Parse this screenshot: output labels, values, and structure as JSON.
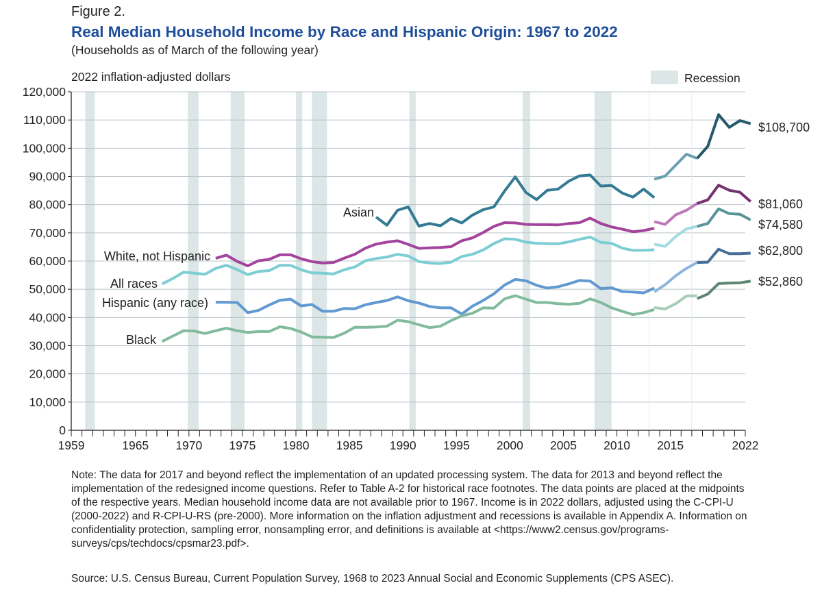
{
  "header": {
    "figure_label": "Figure 2.",
    "title": "Real Median Household Income by Race and Hispanic Origin: 1967 to 2022",
    "subtitle": "(Households as of March of the following year)",
    "y_unit": "2022 inflation-adjusted dollars",
    "legend_recession": "Recession"
  },
  "chart_data": {
    "type": "line",
    "title": "Real Median Household Income by Race and Hispanic Origin: 1967 to 2022",
    "ylabel": "2022 inflation-adjusted dollars",
    "xlabel": "",
    "xlim": [
      1959,
      2022
    ],
    "ylim": [
      0,
      120000
    ],
    "y_ticks": [
      0,
      10000,
      20000,
      30000,
      40000,
      50000,
      60000,
      70000,
      80000,
      90000,
      100000,
      110000,
      120000
    ],
    "y_tick_labels": [
      "0",
      "10,000",
      "20,000",
      "30,000",
      "40,000",
      "50,000",
      "60,000",
      "70,000",
      "80,000",
      "90,000",
      "100,000",
      "110,000",
      "120,000"
    ],
    "x_tick_labels": [
      {
        "year": 1959,
        "label": "1959"
      },
      {
        "year": 1965,
        "label": "1965"
      },
      {
        "year": 1970,
        "label": "1970"
      },
      {
        "year": 1975,
        "label": "1975"
      },
      {
        "year": 1980,
        "label": "1980"
      },
      {
        "year": 1985,
        "label": "1985"
      },
      {
        "year": 1990,
        "label": "1990"
      },
      {
        "year": 1995,
        "label": "1995"
      },
      {
        "year": 2000,
        "label": "2000"
      },
      {
        "year": 2005,
        "label": "2005"
      },
      {
        "year": 2010,
        "label": "2010"
      },
      {
        "year": 2015,
        "label": "2015"
      },
      {
        "year": 2022,
        "label": "2022"
      }
    ],
    "recessions": [
      [
        1960.3,
        1961.2
      ],
      [
        1969.9,
        1970.9
      ],
      [
        1973.9,
        1975.2
      ],
      [
        1980.0,
        1980.6
      ],
      [
        1981.5,
        1982.9
      ],
      [
        1990.6,
        1991.2
      ],
      [
        2001.2,
        2001.9
      ],
      [
        2007.9,
        2009.5
      ]
    ],
    "break_years": [
      2013,
      2017
    ],
    "series": [
      {
        "name": "Asian",
        "color": "#337a92",
        "label": "Asian",
        "end_label": "$108,700",
        "segments": [
          {
            "start": 1987,
            "values": [
              75600,
              72700,
              78000,
              79200,
              72400,
              73300,
              72500,
              75100,
              73500,
              76300,
              78200,
              79200,
              84800,
              89800,
              84300,
              81800,
              85100,
              85500,
              88300,
              90200,
              90500,
              86600,
              86800,
              84100,
              82700,
              85500,
              82500
            ]
          },
          {
            "start": 2013,
            "values": [
              89000,
              90100,
              94000,
              97900,
              96400
            ]
          },
          {
            "start": 2017,
            "values": [
              96400,
              100700,
              111900,
              107400,
              109800,
              108700
            ]
          }
        ]
      },
      {
        "name": "White, not Hispanic",
        "color": "#a3449c",
        "label": "White, not Hispanic",
        "end_label": "$81,060",
        "segments": [
          {
            "start": 1972,
            "values": [
              61000,
              62100,
              59900,
              58300,
              60100,
              60600,
              62200,
              62200,
              60800,
              59800,
              59300,
              59500,
              61000,
              62400,
              64600,
              66000,
              66700,
              67200,
              65900,
              64500,
              64700,
              64800,
              65100,
              67200,
              68200,
              70100,
              72300,
              73600,
              73500,
              73000,
              72900,
              72900,
              72800,
              73300,
              73600,
              75200,
              73300,
              72100,
              71300,
              70400,
              70800,
              71600
            ]
          },
          {
            "start": 2013,
            "values": [
              74000,
              73000,
              76400,
              78000,
              80400
            ]
          },
          {
            "start": 2017,
            "values": [
              80400,
              81700,
              86900,
              85100,
              84400,
              81060
            ]
          }
        ]
      },
      {
        "name": "All races",
        "color": "#7ccdd4",
        "label": "All races",
        "end_label": "$74,580",
        "segments": [
          {
            "start": 1967,
            "values": [
              51900,
              53800,
              56100,
              55700,
              55300,
              57400,
              58500,
              57000,
              55200,
              56300,
              56600,
              58500,
              58500,
              56900,
              55800,
              55700,
              55400,
              56900,
              57900,
              60100,
              60900,
              61400,
              62400,
              61800,
              59800,
              59300,
              59100,
              59600,
              61600,
              62400,
              63900,
              66200,
              67900,
              67700,
              66700,
              66300,
              66200,
              66100,
              66800,
              67700,
              68500,
              66600,
              66300,
              64600,
              63800,
              63800,
              64000
            ]
          },
          {
            "start": 2013,
            "values": [
              66000,
              65200,
              68700,
              71400,
              72300
            ]
          },
          {
            "start": 2017,
            "values": [
              72300,
              73300,
              78500,
              76800,
              76600,
              74580
            ]
          }
        ]
      },
      {
        "name": "Hispanic (any race)",
        "color": "#6199d0",
        "label": "Hispanic (any race)",
        "end_label": "$62,800",
        "segments": [
          {
            "start": 1972,
            "values": [
              45400,
              45400,
              45300,
              41700,
              42500,
              44400,
              46100,
              46500,
              44100,
              44600,
              42200,
              42200,
              43200,
              43100,
              44500,
              45300,
              46000,
              47300,
              45900,
              45100,
              43900,
              43400,
              43400,
              41200,
              44000,
              46000,
              48400,
              51500,
              53500,
              53000,
              51400,
              50400,
              50900,
              51900,
              53100,
              52900,
              50200,
              50500,
              49200,
              49000,
              48700,
              50400
            ]
          },
          {
            "start": 2013,
            "values": [
              49100,
              51600,
              54800,
              57400,
              59500
            ]
          },
          {
            "start": 2017,
            "values": [
              59500,
              59600,
              64200,
              62600,
              62600,
              62800
            ]
          }
        ]
      },
      {
        "name": "Black",
        "color": "#82ba9e",
        "label": "Black",
        "end_label": "$52,860",
        "segments": [
          {
            "start": 1967,
            "values": [
              31500,
              33400,
              35300,
              35200,
              34300,
              35300,
              36200,
              35300,
              34700,
              35000,
              35000,
              36700,
              36100,
              34800,
              33100,
              33000,
              32900,
              34400,
              36500,
              36500,
              36600,
              36900,
              39000,
              38500,
              37400,
              36400,
              36900,
              38900,
              40600,
              41500,
              43400,
              43300,
              46600,
              47700,
              46500,
              45300,
              45300,
              44900,
              44700,
              45000,
              46600,
              45300,
              43400,
              42200,
              41000,
              41700,
              42800
            ]
          },
          {
            "start": 2013,
            "values": [
              43500,
              43000,
              44900,
              47600,
              47700
            ]
          },
          {
            "start": 2017,
            "values": [
              46700,
              48300,
              52000,
              52200,
              52300,
              52860
            ]
          }
        ]
      }
    ]
  },
  "note": "Note: The data for 2017 and beyond reflect the implementation of an updated processing system. The data for 2013 and beyond reflect the implementation of the redesigned income questions. Refer to Table A-2 for historical race footnotes. The data points are placed at the midpoints of the respective years. Median household income data are not available prior to 1967. Income is in 2022 dollars, adjusted using the C-CPI-U (2000-2022) and R-CPI-U-RS (pre-2000). More information on the inflation adjustment and recessions is available in Appendix A. Information on confidentiality protection, sampling error, nonsampling error, and definitions is available at <https://www2.census.gov/programs-surveys/cps/techdocs/cpsmar23.pdf>.",
  "source": "Source: U.S. Census Bureau, Current Population Survey, 1968 to 2023 Annual Social and Economic Supplements (CPS ASEC)."
}
